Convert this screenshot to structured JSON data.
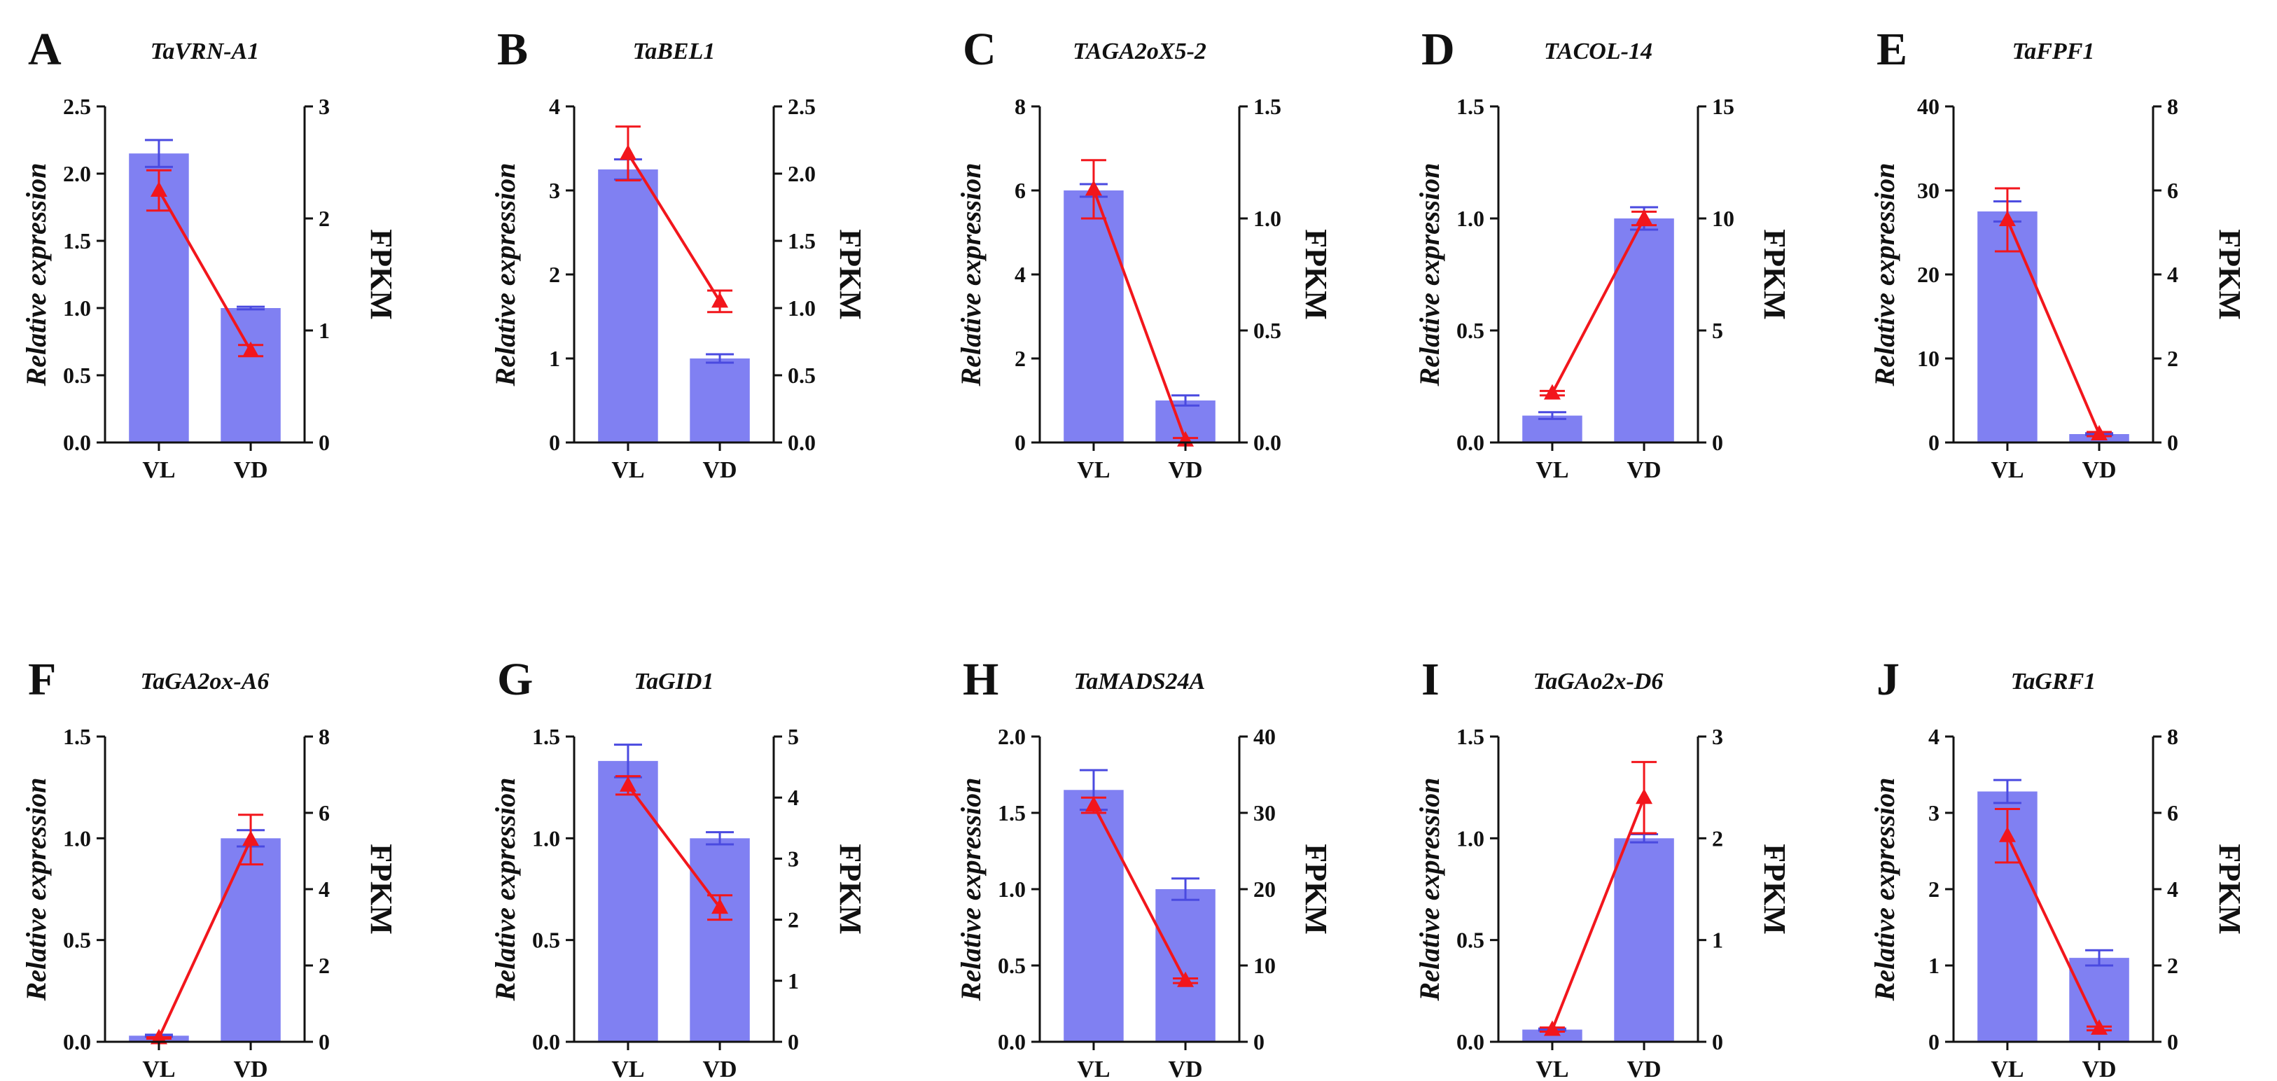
{
  "colors": {
    "bar_fill": "#8080F2",
    "bar_error": "#4A4AE0",
    "line": "#F2161C",
    "axis": "#111111"
  },
  "chart_data": [
    {
      "letter": "A",
      "title": "TaVRN-A1",
      "type": "bar+line",
      "categories": [
        "VL",
        "VD"
      ],
      "ylabel_left": "Relative expression",
      "ylabel_right": "FPKM",
      "left_ylim": [
        0,
        2.5
      ],
      "left_ticks": [
        "0.0",
        "0.5",
        "1.0",
        "1.5",
        "2.0",
        "2.5"
      ],
      "right_ylim": [
        0,
        3
      ],
      "right_ticks": [
        "0",
        "1",
        "2",
        "3"
      ],
      "bars": [
        2.15,
        1.0
      ],
      "bar_err": [
        0.1,
        0.01
      ],
      "fpkm": [
        2.25,
        0.82
      ],
      "fpkm_err": [
        0.18,
        0.05
      ]
    },
    {
      "letter": "B",
      "title": "TaBEL1",
      "type": "bar+line",
      "categories": [
        "VL",
        "VD"
      ],
      "ylabel_left": "Relative expression",
      "ylabel_right": "FPKM",
      "left_ylim": [
        0,
        4
      ],
      "left_ticks": [
        "0",
        "1",
        "2",
        "3",
        "4"
      ],
      "right_ylim": [
        0,
        2.5
      ],
      "right_ticks": [
        "0.0",
        "0.5",
        "1.0",
        "1.5",
        "2.0",
        "2.5"
      ],
      "bars": [
        3.25,
        1.0
      ],
      "bar_err": [
        0.12,
        0.05
      ],
      "fpkm": [
        2.15,
        1.05
      ],
      "fpkm_err": [
        0.2,
        0.08
      ]
    },
    {
      "letter": "C",
      "title": "TAGA2oX5-2",
      "type": "bar+line",
      "categories": [
        "VL",
        "VD"
      ],
      "ylabel_left": "Relative expression",
      "ylabel_right": "FPKM",
      "left_ylim": [
        0,
        8
      ],
      "left_ticks": [
        "0",
        "2",
        "4",
        "6",
        "8"
      ],
      "right_ylim": [
        0,
        1.5
      ],
      "right_ticks": [
        "0.0",
        "0.5",
        "1.0",
        "1.5"
      ],
      "bars": [
        6.0,
        1.0
      ],
      "bar_err": [
        0.15,
        0.12
      ],
      "fpkm": [
        1.13,
        0.01
      ],
      "fpkm_err": [
        0.13,
        0.01
      ]
    },
    {
      "letter": "D",
      "title": "TACOL-14",
      "type": "bar+line",
      "categories": [
        "VL",
        "VD"
      ],
      "ylabel_left": "Relative expression",
      "ylabel_right": "FPKM",
      "left_ylim": [
        0,
        1.5
      ],
      "left_ticks": [
        "0.0",
        "0.5",
        "1.0",
        "1.5"
      ],
      "right_ylim": [
        0,
        15
      ],
      "right_ticks": [
        "0",
        "5",
        "10",
        "15"
      ],
      "bars": [
        0.12,
        1.0
      ],
      "bar_err": [
        0.015,
        0.05
      ],
      "fpkm": [
        2.2,
        10.0
      ],
      "fpkm_err": [
        0.1,
        0.3
      ]
    },
    {
      "letter": "E",
      "title": "TaFPF1",
      "type": "bar+line",
      "categories": [
        "VL",
        "VD"
      ],
      "ylabel_left": "Relative expression",
      "ylabel_right": "FPKM",
      "left_ylim": [
        0,
        40
      ],
      "left_ticks": [
        "0",
        "10",
        "20",
        "30",
        "40"
      ],
      "right_ylim": [
        0,
        8
      ],
      "right_ticks": [
        "0",
        "2",
        "4",
        "6",
        "8"
      ],
      "bars": [
        27.5,
        1.0
      ],
      "bar_err": [
        1.2,
        0.1
      ],
      "fpkm": [
        5.3,
        0.2
      ],
      "fpkm_err": [
        0.75,
        0.05
      ]
    },
    {
      "letter": "F",
      "title": "TaGA2ox-A6",
      "type": "bar+line",
      "categories": [
        "VL",
        "VD"
      ],
      "ylabel_left": "Relative expression",
      "ylabel_right": "FPKM",
      "left_ylim": [
        0,
        1.5
      ],
      "left_ticks": [
        "0.0",
        "0.5",
        "1.0",
        "1.5"
      ],
      "right_ylim": [
        0,
        8
      ],
      "right_ticks": [
        "0",
        "2",
        "4",
        "6",
        "8"
      ],
      "bars": [
        0.03,
        1.0
      ],
      "bar_err": [
        0.005,
        0.04
      ],
      "fpkm": [
        0.1,
        5.3
      ],
      "fpkm_err": [
        0.02,
        0.65
      ]
    },
    {
      "letter": "G",
      "title": "TaGID1",
      "type": "bar+line",
      "categories": [
        "VL",
        "VD"
      ],
      "ylabel_left": "Relative expression",
      "ylabel_right": "FPKM",
      "left_ylim": [
        0,
        1.5
      ],
      "left_ticks": [
        "0.0",
        "0.5",
        "1.0",
        "1.5"
      ],
      "right_ylim": [
        0,
        5
      ],
      "right_ticks": [
        "0",
        "1",
        "2",
        "3",
        "4",
        "5"
      ],
      "bars": [
        1.38,
        1.0
      ],
      "bar_err": [
        0.08,
        0.03
      ],
      "fpkm": [
        4.2,
        2.2
      ],
      "fpkm_err": [
        0.15,
        0.2
      ]
    },
    {
      "letter": "H",
      "title": "TaMADS24A",
      "type": "bar+line",
      "categories": [
        "VL",
        "VD"
      ],
      "ylabel_left": "Relative expression",
      "ylabel_right": "FPKM",
      "left_ylim": [
        0,
        2.0
      ],
      "left_ticks": [
        "0.0",
        "0.5",
        "1.0",
        "1.5",
        "2.0"
      ],
      "right_ylim": [
        0,
        40
      ],
      "right_ticks": [
        "0",
        "10",
        "20",
        "30",
        "40"
      ],
      "bars": [
        1.65,
        1.0
      ],
      "bar_err": [
        0.13,
        0.07
      ],
      "fpkm": [
        31.0,
        8.0
      ],
      "fpkm_err": [
        1.0,
        0.3
      ]
    },
    {
      "letter": "I",
      "title": "TaGAo2x-D6",
      "type": "bar+line",
      "categories": [
        "VL",
        "VD"
      ],
      "ylabel_left": "Relative expression",
      "ylabel_right": "FPKM",
      "left_ylim": [
        0,
        1.5
      ],
      "left_ticks": [
        "0.0",
        "0.5",
        "1.0",
        "1.5"
      ],
      "right_ylim": [
        0,
        3
      ],
      "right_ticks": [
        "0",
        "1",
        "2",
        "3"
      ],
      "bars": [
        0.06,
        1.0
      ],
      "bar_err": [
        0.005,
        0.02
      ],
      "fpkm": [
        0.12,
        2.4
      ],
      "fpkm_err": [
        0.02,
        0.35
      ]
    },
    {
      "letter": "J",
      "title": "TaGRF1",
      "type": "bar+line",
      "categories": [
        "VL",
        "VD"
      ],
      "ylabel_left": "Relative expression",
      "ylabel_right": "FPKM",
      "left_ylim": [
        0,
        4
      ],
      "left_ticks": [
        "0",
        "1",
        "2",
        "3",
        "4"
      ],
      "right_ylim": [
        0,
        8
      ],
      "right_ticks": [
        "0",
        "2",
        "4",
        "6",
        "8"
      ],
      "bars": [
        3.28,
        1.1
      ],
      "bar_err": [
        0.15,
        0.1
      ],
      "fpkm": [
        5.4,
        0.35
      ],
      "fpkm_err": [
        0.7,
        0.05
      ]
    }
  ]
}
